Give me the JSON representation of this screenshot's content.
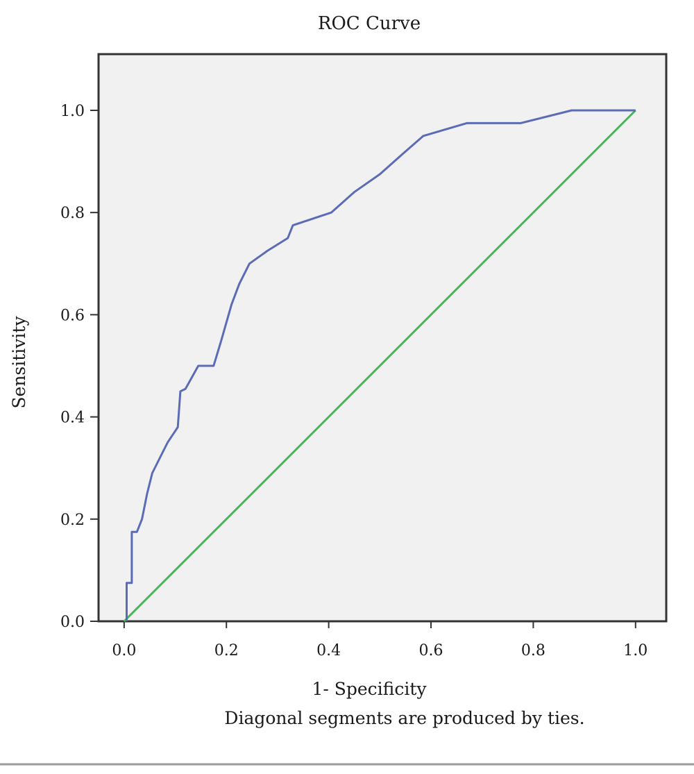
{
  "chart_data": {
    "type": "line",
    "title": "ROC Curve",
    "xlabel": "1- Specificity",
    "ylabel": "Sensitivity",
    "footnote": "Diagonal segments are produced by ties.",
    "xlim": [
      -0.05,
      1.06
    ],
    "ylim": [
      0.0,
      1.11
    ],
    "xticks": [
      "0.0",
      "0.2",
      "0.4",
      "0.6",
      "0.8",
      "1.0"
    ],
    "yticks": [
      "0.0",
      "0.2",
      "0.4",
      "0.6",
      "0.8",
      "1.0"
    ],
    "grid": false,
    "legend": "none",
    "plot_background": "#f1f1f1",
    "series": [
      {
        "color": "#5b6bb5",
        "x": [
          0.005,
          0.005,
          0.01,
          0.015,
          0.015,
          0.025,
          0.035,
          0.045,
          0.055,
          0.07,
          0.085,
          0.095,
          0.105,
          0.11,
          0.11,
          0.12,
          0.145,
          0.175,
          0.19,
          0.21,
          0.225,
          0.245,
          0.28,
          0.32,
          0.33,
          0.405,
          0.45,
          0.5,
          0.545,
          0.585,
          0.67,
          0.775,
          0.875,
          1.0
        ],
        "y": [
          0.0,
          0.075,
          0.075,
          0.075,
          0.175,
          0.175,
          0.2,
          0.25,
          0.29,
          0.32,
          0.35,
          0.365,
          0.38,
          0.45,
          0.45,
          0.455,
          0.5,
          0.5,
          0.55,
          0.62,
          0.66,
          0.7,
          0.725,
          0.75,
          0.775,
          0.8,
          0.84,
          0.875,
          0.915,
          0.95,
          0.975,
          0.975,
          1.0,
          1.0
        ]
      },
      {
        "color": "#4bb35a",
        "x": [
          0.0,
          1.0
        ],
        "y": [
          0.0,
          1.0
        ]
      }
    ]
  }
}
